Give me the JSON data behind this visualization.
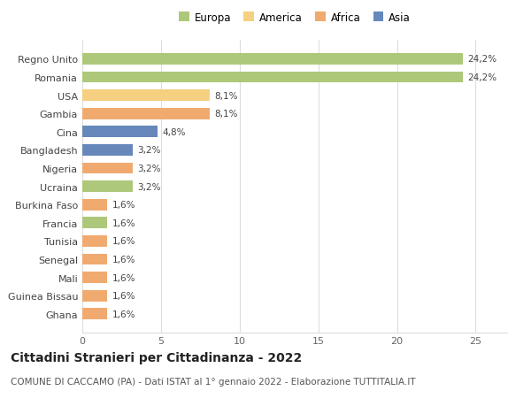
{
  "categories": [
    "Ghana",
    "Guinea Bissau",
    "Mali",
    "Senegal",
    "Tunisia",
    "Francia",
    "Burkina Faso",
    "Ucraina",
    "Nigeria",
    "Bangladesh",
    "Cina",
    "Gambia",
    "USA",
    "Romania",
    "Regno Unito"
  ],
  "values": [
    1.6,
    1.6,
    1.6,
    1.6,
    1.6,
    1.6,
    1.6,
    3.2,
    3.2,
    3.2,
    4.8,
    8.1,
    8.1,
    24.2,
    24.2
  ],
  "colors": [
    "#f0aa70",
    "#f0aa70",
    "#f0aa70",
    "#f0aa70",
    "#f0aa70",
    "#adc87a",
    "#f0aa70",
    "#adc87a",
    "#f0aa70",
    "#6688bb",
    "#6688bb",
    "#f0aa70",
    "#f5d080",
    "#adc87a",
    "#adc87a"
  ],
  "labels": [
    "1,6%",
    "1,6%",
    "1,6%",
    "1,6%",
    "1,6%",
    "1,6%",
    "1,6%",
    "3,2%",
    "3,2%",
    "3,2%",
    "4,8%",
    "8,1%",
    "8,1%",
    "24,2%",
    "24,2%"
  ],
  "legend": {
    "Europa": "#adc87a",
    "America": "#f5d080",
    "Africa": "#f0aa70",
    "Asia": "#6688bb"
  },
  "title": "Cittadini Stranieri per Cittadinanza - 2022",
  "subtitle": "COMUNE DI CACCAMO (PA) - Dati ISTAT al 1° gennaio 2022 - Elaborazione TUTTITALIA.IT",
  "xlim": [
    0,
    27
  ],
  "xticks": [
    0,
    5,
    10,
    15,
    20,
    25
  ],
  "background_color": "#ffffff",
  "grid_color": "#dddddd",
  "bar_height": 0.62,
  "label_fontsize": 7.5,
  "tick_fontsize": 8.0,
  "title_fontsize": 10,
  "subtitle_fontsize": 7.5
}
